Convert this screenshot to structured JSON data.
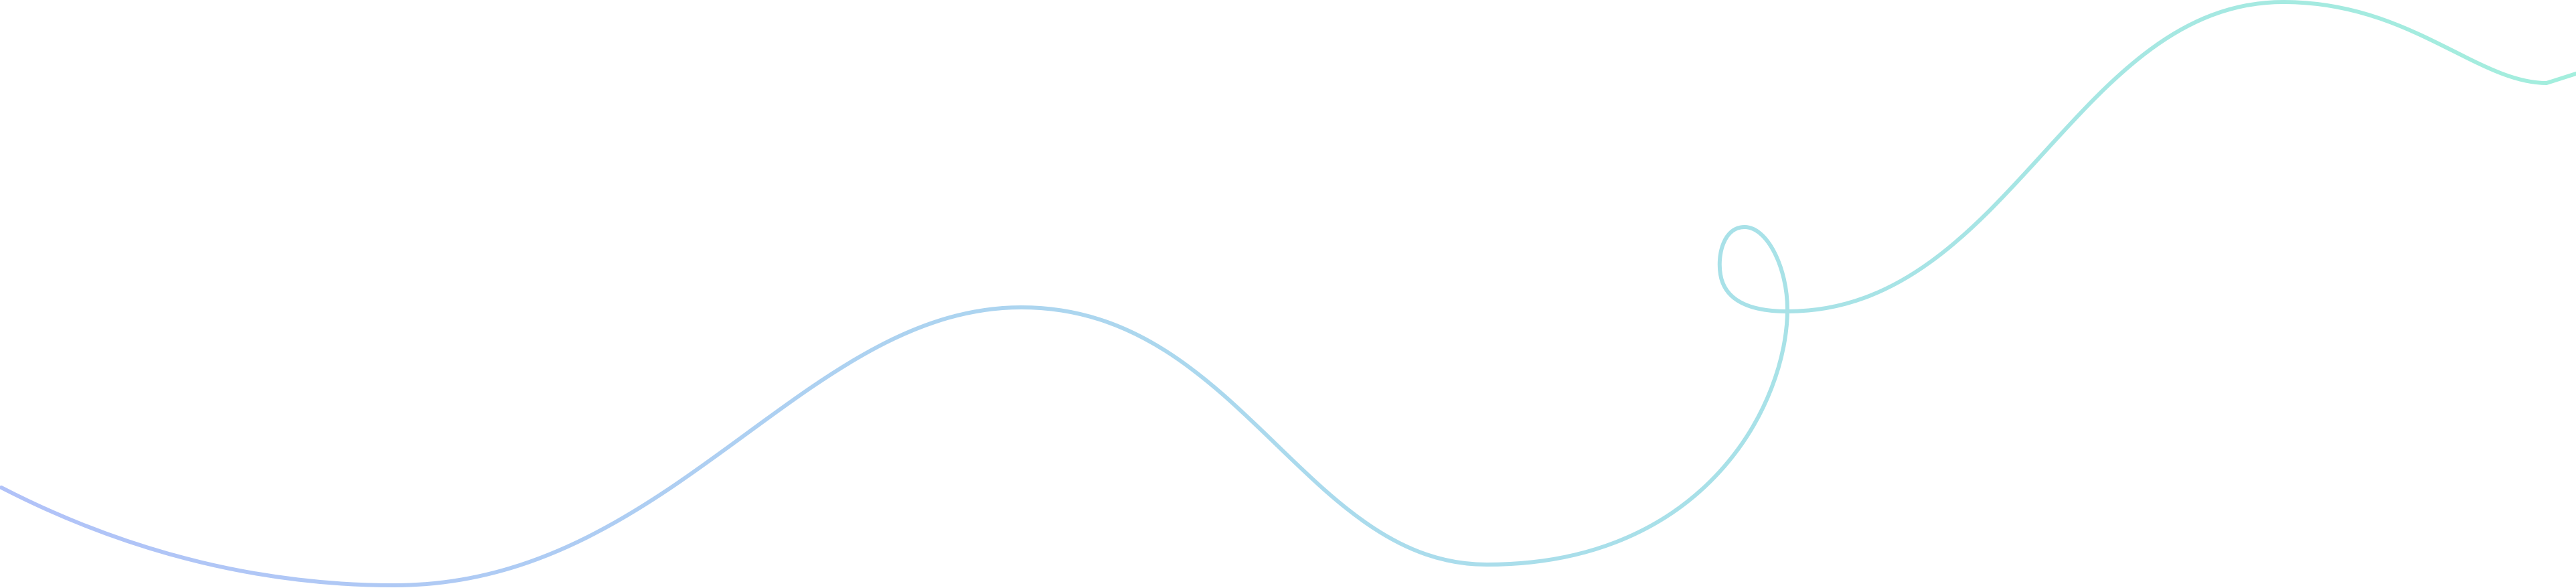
{
  "decoration": {
    "type": "wavy-line",
    "colors": {
      "start": "#b1c2f8",
      "middle": "#aadcec",
      "end": "#a3eedd",
      "background": "#ffffff"
    }
  }
}
